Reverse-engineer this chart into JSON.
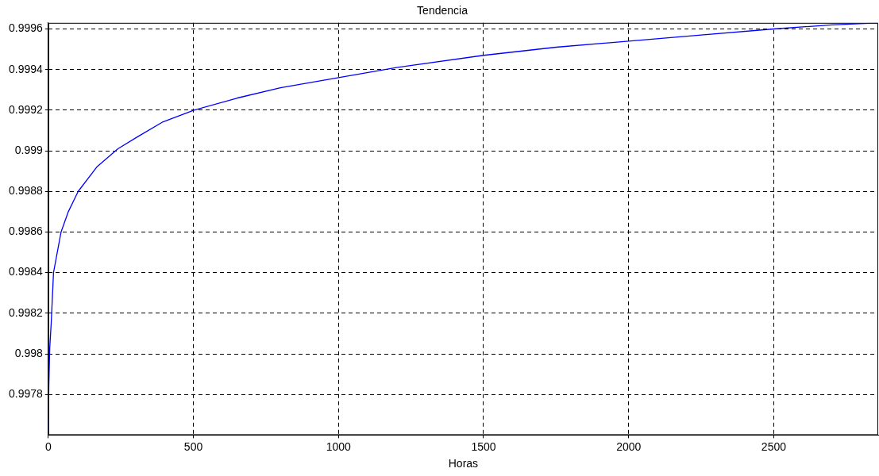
{
  "chart_data": {
    "type": "line",
    "title": "Tendencia",
    "xlabel": "Horas",
    "grid": true,
    "marker": "none",
    "line_style": "solid",
    "xlim": [
      0,
      2860
    ],
    "xticks": [
      0,
      500,
      1000,
      1500,
      2000,
      2500
    ],
    "ylim": [
      0.9976,
      0.99963
    ],
    "yticks": [
      0.9978,
      0.998,
      0.9982,
      0.9984,
      0.9986,
      0.9988,
      0.999,
      0.9992,
      0.9994,
      0.9996
    ],
    "series": [
      {
        "color": "#0000ff",
        "x": [
          0,
          2,
          5,
          10,
          18,
          44,
          69,
          103,
          167,
          240,
          309,
          392,
          502,
          652,
          800,
          1000,
          1200,
          1500,
          1750,
          2000,
          2250,
          2500,
          2700,
          2860
        ],
        "values": [
          0.99762,
          0.99785,
          0.99803,
          0.99815,
          0.9984,
          0.9986,
          0.9987,
          0.9988,
          0.99892,
          0.99901,
          0.99907,
          0.99914,
          0.9992,
          0.99926,
          0.99931,
          0.99936,
          0.99941,
          0.99947,
          0.99951,
          0.99954,
          0.99957,
          0.9996,
          0.99962,
          0.99963
        ]
      }
    ]
  }
}
